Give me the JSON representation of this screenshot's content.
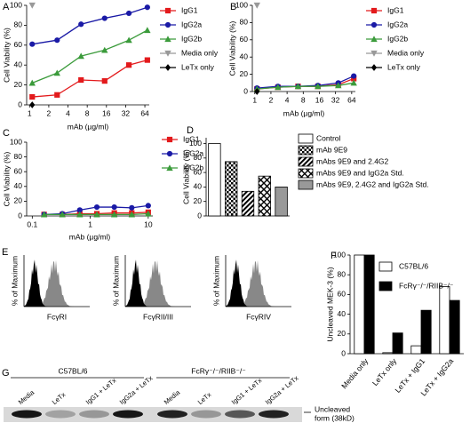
{
  "chart_data": [
    {
      "panel": "A",
      "type": "line",
      "ylabel": "Cell Viability (%)",
      "xlabel": "mAb (µg/ml)",
      "xscale": "log",
      "x": [
        1.1,
        2.7,
        6.4,
        15,
        36,
        70
      ],
      "xlim": [
        0.9,
        75
      ],
      "xticks": [
        1,
        2,
        4,
        8,
        16,
        32,
        64
      ],
      "ylim": [
        0,
        100
      ],
      "yticks": [
        0,
        20,
        40,
        60,
        80,
        100
      ],
      "series": [
        {
          "name": "IgG1",
          "color": "#e31a1c",
          "marker": "square",
          "values": [
            8,
            10,
            25,
            24,
            40,
            45
          ]
        },
        {
          "name": "IgG2a",
          "color": "#1a1aa6",
          "marker": "circle",
          "values": [
            61,
            65,
            81,
            87,
            92,
            98
          ]
        },
        {
          "name": "IgG2b",
          "color": "#3b9b3b",
          "marker": "triangle",
          "values": [
            22,
            32,
            49,
            55,
            65,
            75
          ]
        },
        {
          "name": "Media only",
          "color": "#999999",
          "marker": "triangle-down",
          "values": [
            100,
            null,
            null,
            null,
            null,
            null
          ]
        },
        {
          "name": "LeTx only",
          "color": "#000000",
          "marker": "diamond",
          "values": [
            0,
            null,
            null,
            null,
            null,
            null
          ]
        }
      ]
    },
    {
      "panel": "B",
      "type": "line",
      "ylabel": "Cell Viability (%)",
      "xlabel": "mAb (µg/ml)",
      "xscale": "log",
      "x": [
        1.1,
        2.7,
        6.4,
        15,
        36,
        70
      ],
      "xlim": [
        0.9,
        75
      ],
      "xticks": [
        1,
        2,
        4,
        8,
        16,
        32,
        64
      ],
      "ylim": [
        0,
        100
      ],
      "yticks": [
        0,
        20,
        40,
        60,
        80,
        100
      ],
      "series": [
        {
          "name": "IgG1",
          "color": "#e31a1c",
          "marker": "square",
          "values": [
            3,
            5,
            6,
            6,
            8,
            15
          ]
        },
        {
          "name": "IgG2a",
          "color": "#1a1aa6",
          "marker": "circle",
          "values": [
            4,
            6,
            6,
            7,
            10,
            18
          ]
        },
        {
          "name": "IgG2b",
          "color": "#3b9b3b",
          "marker": "triangle",
          "values": [
            3,
            5,
            6,
            6,
            7,
            10
          ]
        },
        {
          "name": "Media only",
          "color": "#999999",
          "marker": "triangle-down",
          "values": [
            100,
            null,
            null,
            null,
            null,
            null
          ]
        },
        {
          "name": "LeTx only",
          "color": "#000000",
          "marker": "diamond",
          "values": [
            0,
            null,
            null,
            null,
            null,
            null
          ]
        }
      ]
    },
    {
      "panel": "C",
      "type": "line",
      "ylabel": "Cell Viability (%)",
      "xlabel": "mAb (µg/ml)",
      "xscale": "log",
      "x": [
        0.16,
        0.33,
        0.66,
        1.3,
        2.6,
        5.2,
        10
      ],
      "xlim": [
        0.08,
        12
      ],
      "xticks": [
        0.1,
        1,
        10
      ],
      "ylim": [
        0,
        100
      ],
      "yticks": [
        0,
        20,
        40,
        60,
        80,
        100
      ],
      "series": [
        {
          "name": "IgG1",
          "color": "#e31a1c",
          "marker": "square",
          "values": [
            2,
            2,
            3,
            3,
            4,
            4,
            5
          ]
        },
        {
          "name": "IgG2a",
          "color": "#1a1aa6",
          "marker": "circle",
          "values": [
            2,
            3,
            8,
            12,
            12,
            11,
            14
          ]
        },
        {
          "name": "IgG2b",
          "color": "#3b9b3b",
          "marker": "triangle",
          "values": [
            2,
            2,
            2,
            2,
            2,
            2,
            3
          ]
        }
      ]
    },
    {
      "panel": "D",
      "type": "bar",
      "ylabel": "Cell Viability (%)",
      "categories": [
        "Control",
        "mAb 9E9",
        "mAbs 9E9 and 2.4G2",
        "mAbs 9E9 and IgG2a Std.",
        "mAbs 9E9, 2.4G2 and IgG2a Std."
      ],
      "values": [
        100,
        75,
        34,
        55,
        40
      ],
      "patterns": [
        "none",
        "checker",
        "stripes",
        "crosshatch",
        "solid"
      ],
      "colors": [
        "#ffffff",
        "#000000",
        "#000000",
        "#000000",
        "#999999"
      ],
      "ylim": [
        0,
        108
      ],
      "yticks": [
        0,
        20,
        40,
        60,
        80,
        100
      ]
    },
    {
      "panel": "F",
      "type": "bar",
      "ylabel": "Uncleaved MEK-3 (%)",
      "categories": [
        "Media only",
        "LeTx only",
        "LeTx + IgG1",
        "LeTx + IgG2a"
      ],
      "series": [
        {
          "name": "C57BL/6",
          "color": "#ffffff",
          "values": [
            100,
            1,
            8,
            68
          ]
        },
        {
          "name": "FcRγ⁻/⁻/RIIB⁻/⁻",
          "color": "#000000",
          "values": [
            100,
            21,
            44,
            54
          ]
        }
      ],
      "ylim": [
        0,
        100
      ],
      "yticks": [
        0,
        20,
        40,
        60,
        80,
        100
      ]
    }
  ],
  "panel_e": {
    "panel": "E",
    "ylabel": "% of Maximum",
    "histograms": [
      {
        "xlabel": "FcγRI"
      },
      {
        "xlabel": "FcγRII/III"
      },
      {
        "xlabel": "FcγRIV"
      }
    ]
  },
  "panel_g": {
    "panel": "G",
    "groups": [
      {
        "name": "C57BL/6",
        "lanes": [
          "Media",
          "LeTx",
          "IgG1 + LeTx",
          "IgG2a + LeTx"
        ]
      },
      {
        "name": "FcRγ⁻/⁻/RIIB⁻/⁻",
        "lanes": [
          "Media",
          "LeTx",
          "IgG1 + LeTx",
          "IgG2a + LeTx"
        ]
      }
    ],
    "band_label": [
      "Uncleaved",
      "form (38kD)"
    ]
  }
}
